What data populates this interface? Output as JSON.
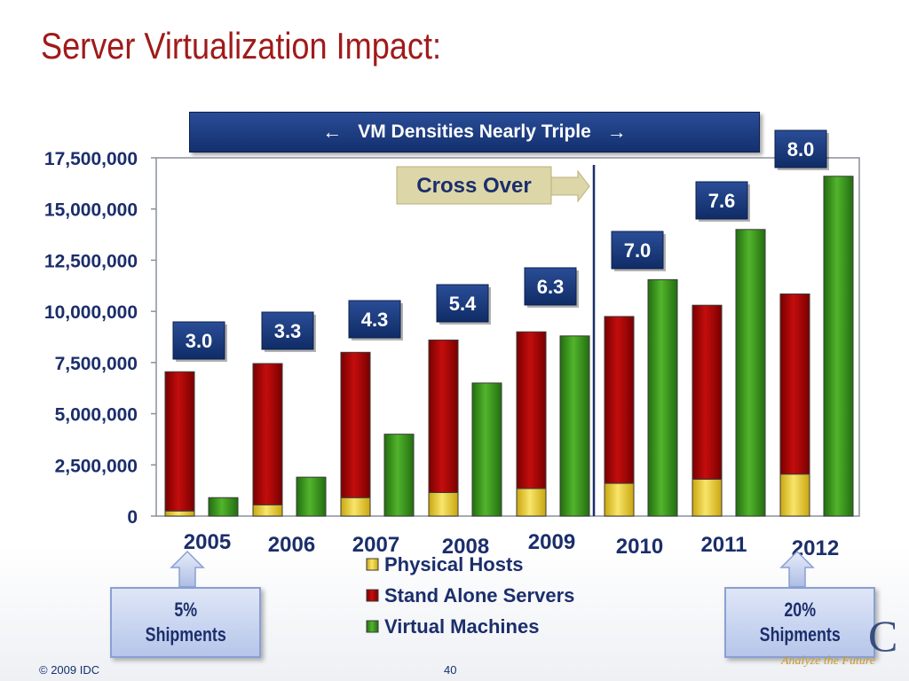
{
  "slide": {
    "title": "Server Virtualization Impact:",
    "banner": {
      "text": "VM Densities Nearly Triple",
      "left_arrow": "←",
      "right_arrow": "→"
    },
    "crossover_label": "Cross Over",
    "callouts": [
      {
        "text_line1": "5%",
        "text_line2": "Shipments",
        "year": "2005"
      },
      {
        "text_line1": "20%",
        "text_line2": "Shipments",
        "year": "2012"
      }
    ],
    "footer": {
      "copyright": "© 2009 IDC",
      "page_number": "40",
      "logo_letter": "C",
      "tagline": "Analyze the Future"
    }
  },
  "chart_data": {
    "type": "bar",
    "categories": [
      "2005",
      "2006",
      "2007",
      "2008",
      "2009",
      "2010",
      "2011",
      "2012"
    ],
    "ylim": [
      0,
      17500000
    ],
    "y_ticks": [
      "0",
      "2,500,000",
      "5,000,000",
      "7,500,000",
      "10,000,000",
      "12,500,000",
      "15,000,000",
      "17,500,000"
    ],
    "legend_position": "bottom-center",
    "series": [
      {
        "name": "Physical Hosts",
        "color": "#f2d33a",
        "stack": "servers",
        "values": [
          250000,
          550000,
          900000,
          1150000,
          1350000,
          1600000,
          1800000,
          2050000
        ]
      },
      {
        "name": "Stand Alone Servers",
        "color": "#b00000",
        "stack": "servers",
        "values": [
          6800000,
          6900000,
          7100000,
          7450000,
          7650000,
          8150000,
          8500000,
          8800000
        ]
      },
      {
        "name": "Virtual  Machines",
        "color": "#3c9a1e",
        "stack": "vm",
        "values": [
          900000,
          1900000,
          4000000,
          6500000,
          8800000,
          11550000,
          14000000,
          16600000
        ]
      }
    ],
    "vm_density_labels": [
      "3.0",
      "3.3",
      "4.3",
      "5.4",
      "6.3",
      "7.0",
      "7.6",
      "8.0"
    ],
    "crossover_after_category": "2009"
  }
}
